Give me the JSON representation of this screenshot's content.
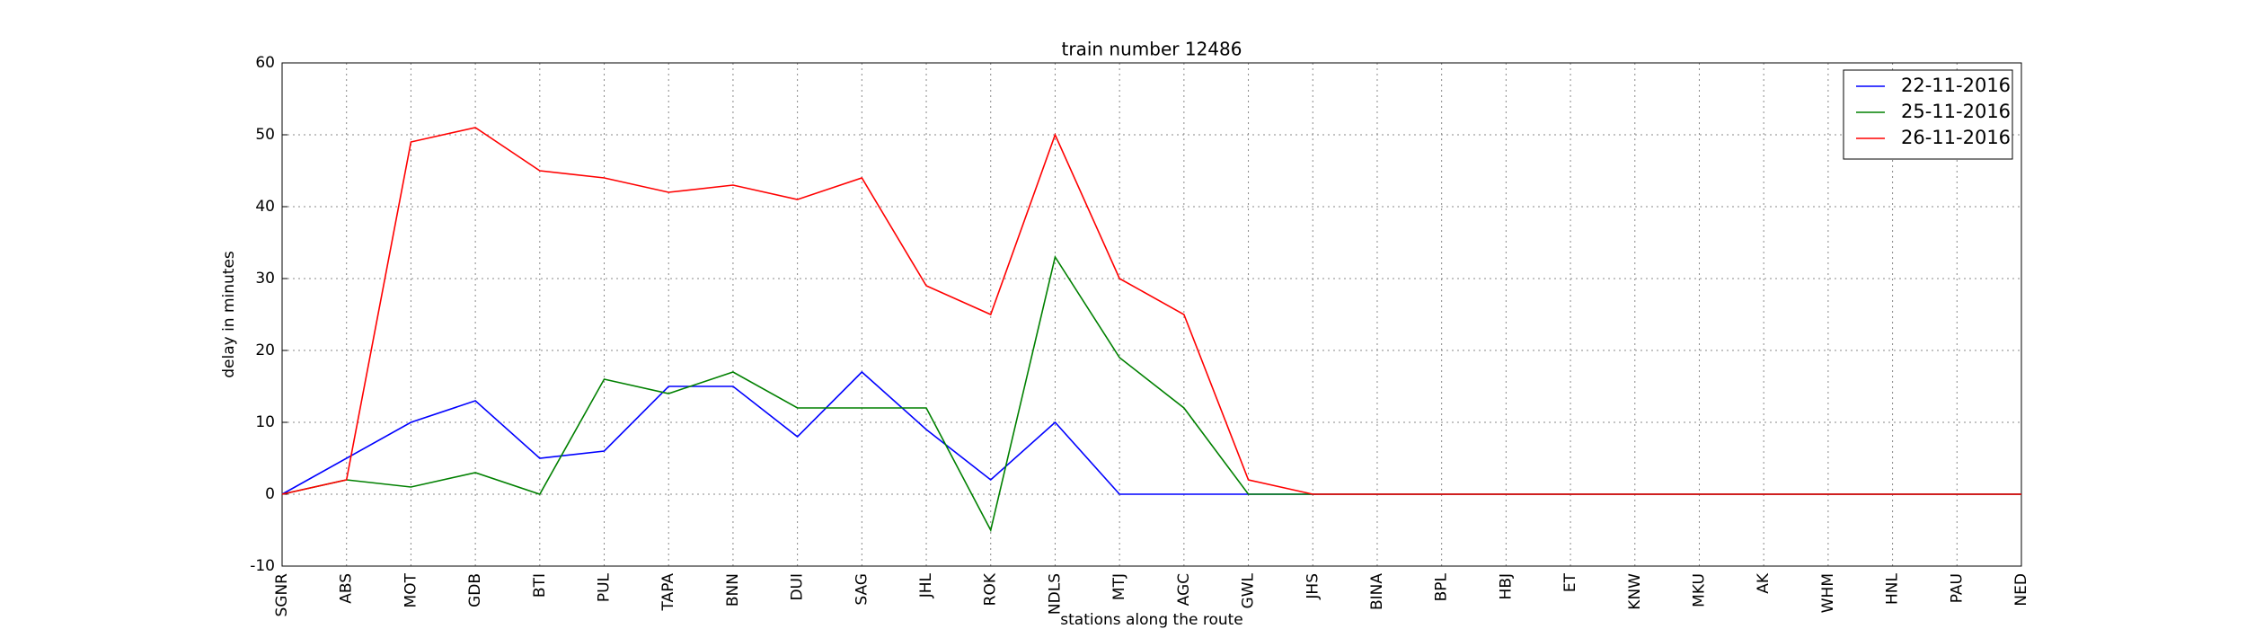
{
  "chart_data": {
    "type": "line",
    "title": "train number 12486",
    "x_label": "stations along the route",
    "y_label": "delay in minutes",
    "categories": [
      "SGNR",
      "ABS",
      "MOT",
      "GDB",
      "BTI",
      "PUL",
      "TAPA",
      "BNN",
      "DUI",
      "SAG",
      "JHL",
      "ROK",
      "NDLS",
      "MTJ",
      "AGC",
      "GWL",
      "JHS",
      "BINA",
      "BPL",
      "HBJ",
      "ET",
      "KNW",
      "MKU",
      "AK",
      "WHM",
      "HNL",
      "PAU",
      "NED"
    ],
    "series": [
      {
        "name": "22-11-2016",
        "color": "#0000ff",
        "values": [
          0,
          5,
          10,
          13,
          5,
          6,
          15,
          15,
          8,
          17,
          9,
          2,
          10,
          0,
          0,
          0,
          0,
          0,
          0,
          0,
          0,
          0,
          0,
          0,
          0,
          0,
          0,
          0
        ]
      },
      {
        "name": "25-11-2016",
        "color": "#008000",
        "values": [
          0,
          2,
          1,
          3,
          0,
          16,
          14,
          17,
          12,
          12,
          12,
          -5,
          33,
          19,
          12,
          0,
          0,
          0,
          0,
          0,
          0,
          0,
          0,
          0,
          0,
          0,
          0,
          0
        ]
      },
      {
        "name": "26-11-2016",
        "color": "#ff0000",
        "values": [
          0,
          2,
          49,
          51,
          45,
          44,
          42,
          43,
          41,
          44,
          29,
          25,
          50,
          30,
          25,
          2,
          0,
          0,
          0,
          0,
          0,
          0,
          0,
          0,
          0,
          0,
          0,
          0
        ]
      }
    ],
    "ylim": [
      -10,
      60
    ],
    "yticks": [
      -10,
      0,
      10,
      20,
      30,
      40,
      50,
      60
    ],
    "grid": true,
    "legend": "upper right"
  }
}
